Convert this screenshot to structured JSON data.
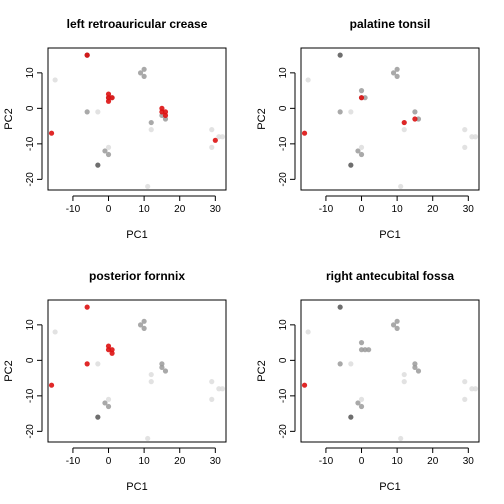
{
  "chart_data": [
    {
      "type": "scatter",
      "title": "left retroauricular crease",
      "xlabel": "PC1",
      "ylabel": "PC2",
      "xlim": [
        -17,
        33
      ],
      "ylim": [
        -23,
        17
      ],
      "xticks": [
        -10,
        0,
        10,
        20,
        30
      ],
      "yticks": [
        -20,
        -10,
        0,
        10
      ],
      "background_points": [
        {
          "x": -15,
          "y": 8,
          "shade": "light"
        },
        {
          "x": -6,
          "y": 15,
          "shade": "dark"
        },
        {
          "x": -6,
          "y": -1,
          "shade": "medium"
        },
        {
          "x": -3,
          "y": -1,
          "shade": "light"
        },
        {
          "x": -3,
          "y": -16,
          "shade": "dark"
        },
        {
          "x": -1,
          "y": -12,
          "shade": "medium"
        },
        {
          "x": 0,
          "y": -13,
          "shade": "medium"
        },
        {
          "x": 0,
          "y": -11,
          "shade": "light"
        },
        {
          "x": 0,
          "y": 3,
          "shade": "medium"
        },
        {
          "x": 1,
          "y": 3,
          "shade": "medium"
        },
        {
          "x": 9,
          "y": 10,
          "shade": "medium"
        },
        {
          "x": 10,
          "y": 11,
          "shade": "medium"
        },
        {
          "x": 10,
          "y": 9,
          "shade": "medium"
        },
        {
          "x": 12,
          "y": -4,
          "shade": "medium"
        },
        {
          "x": 12,
          "y": -6,
          "shade": "light"
        },
        {
          "x": 11,
          "y": -22,
          "shade": "light"
        },
        {
          "x": 15,
          "y": -2,
          "shade": "medium"
        },
        {
          "x": 16,
          "y": -3,
          "shade": "medium"
        },
        {
          "x": 29,
          "y": -6,
          "shade": "light"
        },
        {
          "x": 31,
          "y": -8,
          "shade": "light"
        },
        {
          "x": 29,
          "y": -11,
          "shade": "light"
        },
        {
          "x": 32,
          "y": -8,
          "shade": "light"
        }
      ],
      "highlight_points": [
        {
          "x": -6,
          "y": 15
        },
        {
          "x": -16,
          "y": -7
        },
        {
          "x": 0,
          "y": 4
        },
        {
          "x": 0,
          "y": 3
        },
        {
          "x": 0,
          "y": 2
        },
        {
          "x": 1,
          "y": 3
        },
        {
          "x": 15,
          "y": -1
        },
        {
          "x": 15,
          "y": 0
        },
        {
          "x": 16,
          "y": -1
        },
        {
          "x": 16,
          "y": -2
        },
        {
          "x": 30,
          "y": -9
        }
      ]
    },
    {
      "type": "scatter",
      "title": "palatine tonsil",
      "xlabel": "PC1",
      "ylabel": "PC2",
      "xlim": [
        -17,
        33
      ],
      "ylim": [
        -23,
        17
      ],
      "xticks": [
        -10,
        0,
        10,
        20,
        30
      ],
      "yticks": [
        -20,
        -10,
        0,
        10
      ],
      "background_points": [
        {
          "x": -15,
          "y": 8,
          "shade": "light"
        },
        {
          "x": -6,
          "y": 15,
          "shade": "dark"
        },
        {
          "x": -6,
          "y": -1,
          "shade": "medium"
        },
        {
          "x": -3,
          "y": -1,
          "shade": "light"
        },
        {
          "x": -3,
          "y": -16,
          "shade": "dark"
        },
        {
          "x": -1,
          "y": -12,
          "shade": "medium"
        },
        {
          "x": 0,
          "y": -13,
          "shade": "medium"
        },
        {
          "x": 0,
          "y": -11,
          "shade": "light"
        },
        {
          "x": 0,
          "y": 5,
          "shade": "medium"
        },
        {
          "x": 0,
          "y": 3,
          "shade": "medium"
        },
        {
          "x": 1,
          "y": 3,
          "shade": "medium"
        },
        {
          "x": 9,
          "y": 10,
          "shade": "medium"
        },
        {
          "x": 10,
          "y": 11,
          "shade": "medium"
        },
        {
          "x": 10,
          "y": 9,
          "shade": "medium"
        },
        {
          "x": 12,
          "y": -4,
          "shade": "light"
        },
        {
          "x": 12,
          "y": -6,
          "shade": "light"
        },
        {
          "x": 11,
          "y": -22,
          "shade": "light"
        },
        {
          "x": 15,
          "y": -1,
          "shade": "medium"
        },
        {
          "x": 16,
          "y": -3,
          "shade": "medium"
        },
        {
          "x": 29,
          "y": -6,
          "shade": "light"
        },
        {
          "x": 31,
          "y": -8,
          "shade": "light"
        },
        {
          "x": 29,
          "y": -11,
          "shade": "light"
        },
        {
          "x": 32,
          "y": -8,
          "shade": "light"
        }
      ],
      "highlight_points": [
        {
          "x": -16,
          "y": -7
        },
        {
          "x": 0,
          "y": 3
        },
        {
          "x": 12,
          "y": -4
        },
        {
          "x": 15,
          "y": -3
        }
      ]
    },
    {
      "type": "scatter",
      "title": "posterior fornnix",
      "xlabel": "PC1",
      "ylabel": "PC2",
      "xlim": [
        -17,
        33
      ],
      "ylim": [
        -23,
        17
      ],
      "xticks": [
        -10,
        0,
        10,
        20,
        30
      ],
      "yticks": [
        -20,
        -10,
        0,
        10
      ],
      "background_points": [
        {
          "x": -15,
          "y": 8,
          "shade": "light"
        },
        {
          "x": -3,
          "y": -1,
          "shade": "light"
        },
        {
          "x": -3,
          "y": -16,
          "shade": "dark"
        },
        {
          "x": -1,
          "y": -12,
          "shade": "medium"
        },
        {
          "x": 0,
          "y": -13,
          "shade": "medium"
        },
        {
          "x": 0,
          "y": -11,
          "shade": "light"
        },
        {
          "x": 9,
          "y": 10,
          "shade": "medium"
        },
        {
          "x": 10,
          "y": 11,
          "shade": "medium"
        },
        {
          "x": 10,
          "y": 9,
          "shade": "medium"
        },
        {
          "x": 12,
          "y": -4,
          "shade": "light"
        },
        {
          "x": 12,
          "y": -6,
          "shade": "light"
        },
        {
          "x": 11,
          "y": -22,
          "shade": "light"
        },
        {
          "x": 15,
          "y": -1,
          "shade": "medium"
        },
        {
          "x": 16,
          "y": -3,
          "shade": "medium"
        },
        {
          "x": 15,
          "y": -2,
          "shade": "medium"
        },
        {
          "x": 29,
          "y": -6,
          "shade": "light"
        },
        {
          "x": 31,
          "y": -8,
          "shade": "light"
        },
        {
          "x": 29,
          "y": -11,
          "shade": "light"
        },
        {
          "x": 32,
          "y": -8,
          "shade": "light"
        }
      ],
      "highlight_points": [
        {
          "x": -6,
          "y": 15
        },
        {
          "x": -16,
          "y": -7
        },
        {
          "x": -6,
          "y": -1
        },
        {
          "x": 0,
          "y": 4
        },
        {
          "x": 0,
          "y": 3
        },
        {
          "x": 1,
          "y": 3
        },
        {
          "x": 1,
          "y": 2
        }
      ]
    },
    {
      "type": "scatter",
      "title": "right antecubital fossa",
      "xlabel": "PC1",
      "ylabel": "PC2",
      "xlim": [
        -17,
        33
      ],
      "ylim": [
        -23,
        17
      ],
      "xticks": [
        -10,
        0,
        10,
        20,
        30
      ],
      "yticks": [
        -20,
        -10,
        0,
        10
      ],
      "background_points": [
        {
          "x": -15,
          "y": 8,
          "shade": "light"
        },
        {
          "x": -6,
          "y": 15,
          "shade": "dark"
        },
        {
          "x": -6,
          "y": -1,
          "shade": "medium"
        },
        {
          "x": -3,
          "y": -1,
          "shade": "light"
        },
        {
          "x": -3,
          "y": -16,
          "shade": "dark"
        },
        {
          "x": -1,
          "y": -12,
          "shade": "medium"
        },
        {
          "x": 0,
          "y": -13,
          "shade": "medium"
        },
        {
          "x": 0,
          "y": -11,
          "shade": "light"
        },
        {
          "x": 0,
          "y": 5,
          "shade": "medium"
        },
        {
          "x": 0,
          "y": 3,
          "shade": "medium"
        },
        {
          "x": 1,
          "y": 3,
          "shade": "medium"
        },
        {
          "x": 2,
          "y": 3,
          "shade": "medium"
        },
        {
          "x": 9,
          "y": 10,
          "shade": "medium"
        },
        {
          "x": 10,
          "y": 11,
          "shade": "medium"
        },
        {
          "x": 10,
          "y": 9,
          "shade": "medium"
        },
        {
          "x": 12,
          "y": -4,
          "shade": "light"
        },
        {
          "x": 12,
          "y": -6,
          "shade": "light"
        },
        {
          "x": 11,
          "y": -22,
          "shade": "light"
        },
        {
          "x": 15,
          "y": -1,
          "shade": "medium"
        },
        {
          "x": 16,
          "y": -3,
          "shade": "medium"
        },
        {
          "x": 15,
          "y": -2,
          "shade": "medium"
        },
        {
          "x": 29,
          "y": -6,
          "shade": "light"
        },
        {
          "x": 31,
          "y": -8,
          "shade": "light"
        },
        {
          "x": 29,
          "y": -11,
          "shade": "light"
        },
        {
          "x": 32,
          "y": -8,
          "shade": "light"
        }
      ],
      "highlight_points": [
        {
          "x": -16,
          "y": -7
        }
      ]
    }
  ],
  "colors": {
    "highlight": "#dd1111",
    "light": "#dddddd",
    "medium": "#9a9a9a",
    "dark": "#555555",
    "axis": "#000000",
    "background": "#ffffff"
  }
}
